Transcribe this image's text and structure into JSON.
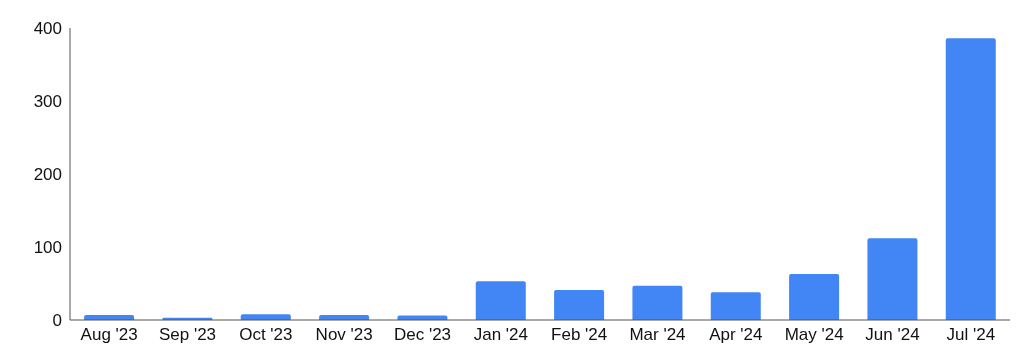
{
  "chart_data": {
    "type": "bar",
    "categories": [
      "Aug '23",
      "Sep '23",
      "Oct '23",
      "Nov '23",
      "Dec '23",
      "Jan '24",
      "Feb '24",
      "Mar '24",
      "Apr '24",
      "May '24",
      "Jun '24",
      "Jul '24"
    ],
    "values": [
      7,
      3,
      8,
      7,
      6,
      53,
      41,
      47,
      38,
      63,
      112,
      386
    ],
    "color": "#4285f4",
    "ylim": [
      0,
      400
    ],
    "yticks": [
      0,
      100,
      200,
      300,
      400
    ],
    "grid": false,
    "legend": false
  }
}
